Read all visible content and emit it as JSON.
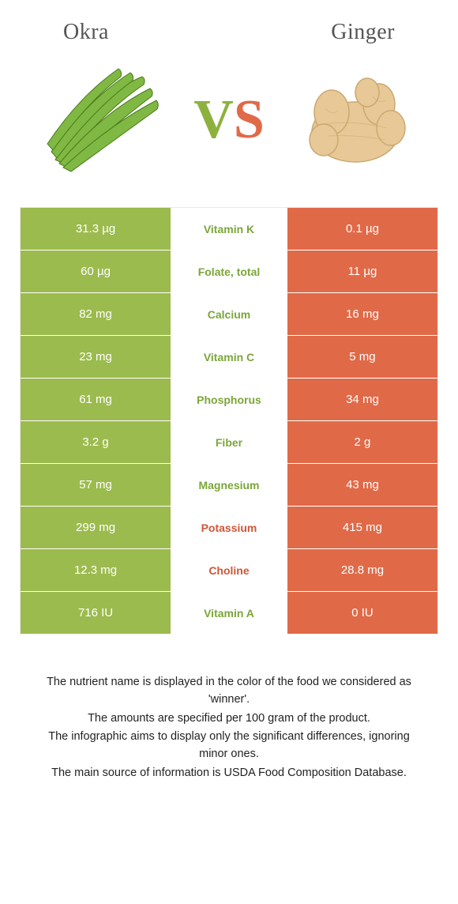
{
  "header": {
    "left_title": "Okra",
    "right_title": "Ginger",
    "vs_v": "V",
    "vs_s": "S"
  },
  "colors": {
    "left_bg": "#9cbb4e",
    "right_bg": "#e06a48",
    "left_accent": "#7ca539",
    "right_accent": "#d05638",
    "mid_bg": "#ffffff"
  },
  "nutrients": [
    {
      "name": "Vitamin K",
      "left": "31.3 µg",
      "right": "0.1 µg",
      "winner": "left"
    },
    {
      "name": "Folate, total",
      "left": "60 µg",
      "right": "11 µg",
      "winner": "left"
    },
    {
      "name": "Calcium",
      "left": "82 mg",
      "right": "16 mg",
      "winner": "left"
    },
    {
      "name": "Vitamin C",
      "left": "23 mg",
      "right": "5 mg",
      "winner": "left"
    },
    {
      "name": "Phosphorus",
      "left": "61 mg",
      "right": "34 mg",
      "winner": "left"
    },
    {
      "name": "Fiber",
      "left": "3.2 g",
      "right": "2 g",
      "winner": "left"
    },
    {
      "name": "Magnesium",
      "left": "57 mg",
      "right": "43 mg",
      "winner": "left"
    },
    {
      "name": "Potassium",
      "left": "299 mg",
      "right": "415 mg",
      "winner": "right"
    },
    {
      "name": "Choline",
      "left": "12.3 mg",
      "right": "28.8 mg",
      "winner": "right"
    },
    {
      "name": "Vitamin A",
      "left": "716 IU",
      "right": "0 IU",
      "winner": "left"
    }
  ],
  "footnotes": [
    "The nutrient name is displayed in the color of the food we considered as 'winner'.",
    "The amounts are specified per 100 gram of the product.",
    "The infographic aims to display only the significant differences, ignoring minor ones.",
    "The main source of information is USDA Food Composition Database."
  ]
}
